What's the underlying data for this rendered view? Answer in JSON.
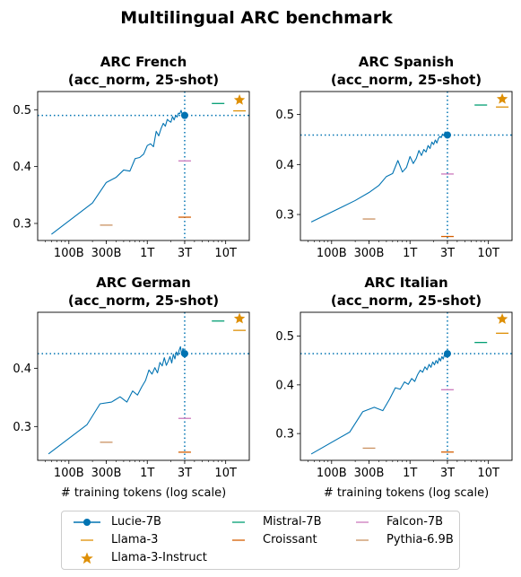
{
  "figure": {
    "title": "Multilingual ARC benchmark"
  },
  "chart_data": [
    {
      "type": "line",
      "title": "ARC French\n(acc_norm, 25-shot)",
      "title_lines": [
        "ARC French",
        "(acc_norm, 25-shot)"
      ],
      "xlabel": "",
      "ylabel": "",
      "xscale": "log",
      "xlim": [
        40,
        20000
      ],
      "ylim": [
        0.27,
        0.532
      ],
      "xticks": [
        {
          "v": 100,
          "label": "100B"
        },
        {
          "v": 300,
          "label": "300B"
        },
        {
          "v": 1000,
          "label": "1T"
        },
        {
          "v": 3000,
          "label": "3T"
        },
        {
          "v": 10000,
          "label": "10T"
        }
      ],
      "yticks": [
        0.3,
        0.4,
        0.5
      ],
      "grid": false,
      "reference": {
        "x": 3000,
        "y": 0.49
      },
      "series": [
        {
          "name": "Lucie-7B",
          "kind": "line",
          "color": "#0173b2",
          "x": [
            60,
            200,
            300,
            400,
            500,
            600,
            700,
            800,
            900,
            1000,
            1100,
            1200,
            1300,
            1400,
            1500,
            1600,
            1700,
            1800,
            1900,
            2000,
            2100,
            2200,
            2300,
            2400,
            2500,
            2600,
            2700,
            2800,
            2900,
            3000
          ],
          "y": [
            0.281,
            0.336,
            0.372,
            0.381,
            0.394,
            0.392,
            0.414,
            0.416,
            0.422,
            0.437,
            0.44,
            0.435,
            0.462,
            0.454,
            0.467,
            0.476,
            0.471,
            0.483,
            0.48,
            0.478,
            0.488,
            0.482,
            0.49,
            0.487,
            0.494,
            0.493,
            0.499,
            0.491,
            0.493,
            0.49
          ],
          "final_marker": {
            "x": 3000,
            "y": 0.49
          }
        },
        {
          "name": "Llama-3",
          "kind": "hline",
          "color": "#de8f05",
          "x": 15000,
          "y": 0.498
        },
        {
          "name": "Llama-3-Instruct",
          "kind": "star",
          "color": "#de8f05",
          "x": 15000,
          "y": 0.517
        },
        {
          "name": "Mistral-7B",
          "kind": "hline",
          "color": "#029e73",
          "x": 8000,
          "y": 0.511
        },
        {
          "name": "Croissant",
          "kind": "hline",
          "color": "#d55e00",
          "x": 3000,
          "y": 0.311
        },
        {
          "name": "Falcon-7B",
          "kind": "hline",
          "color": "#cc78bc",
          "x": 3000,
          "y": 0.41
        },
        {
          "name": "Pythia-6.9B",
          "kind": "hline",
          "color": "#ca9161",
          "x": 300,
          "y": 0.297
        }
      ]
    },
    {
      "type": "line",
      "title": "ARC Spanish\n(acc_norm, 25-shot)",
      "title_lines": [
        "ARC Spanish",
        "(acc_norm, 25-shot)"
      ],
      "xlabel": "",
      "ylabel": "",
      "xscale": "log",
      "xlim": [
        40,
        20000
      ],
      "ylim": [
        0.248,
        0.546
      ],
      "xticks": [
        {
          "v": 100,
          "label": "100B"
        },
        {
          "v": 300,
          "label": "300B"
        },
        {
          "v": 1000,
          "label": "1T"
        },
        {
          "v": 3000,
          "label": "3T"
        },
        {
          "v": 10000,
          "label": "10T"
        }
      ],
      "yticks": [
        0.3,
        0.4,
        0.5
      ],
      "grid": false,
      "reference": {
        "x": 3000,
        "y": 0.459
      },
      "series": [
        {
          "name": "Lucie-7B",
          "kind": "line",
          "color": "#0173b2",
          "x": [
            55,
            200,
            300,
            400,
            500,
            600,
            700,
            800,
            900,
            1000,
            1100,
            1200,
            1300,
            1400,
            1500,
            1600,
            1700,
            1800,
            1900,
            2000,
            2100,
            2200,
            2300,
            2400,
            2500,
            2600,
            2700,
            2800,
            2900,
            3000
          ],
          "y": [
            0.285,
            0.328,
            0.344,
            0.358,
            0.376,
            0.382,
            0.408,
            0.385,
            0.394,
            0.416,
            0.402,
            0.412,
            0.428,
            0.418,
            0.43,
            0.425,
            0.438,
            0.432,
            0.445,
            0.44,
            0.449,
            0.443,
            0.452,
            0.456,
            0.454,
            0.461,
            0.458,
            0.465,
            0.462,
            0.459
          ],
          "final_marker": {
            "x": 3000,
            "y": 0.459
          }
        },
        {
          "name": "Llama-3",
          "kind": "hline",
          "color": "#de8f05",
          "x": 15000,
          "y": 0.515
        },
        {
          "name": "Llama-3-Instruct",
          "kind": "star",
          "color": "#de8f05",
          "x": 15000,
          "y": 0.531
        },
        {
          "name": "Mistral-7B",
          "kind": "hline",
          "color": "#029e73",
          "x": 8000,
          "y": 0.519
        },
        {
          "name": "Croissant",
          "kind": "hline",
          "color": "#d55e00",
          "x": 3000,
          "y": 0.256
        },
        {
          "name": "Falcon-7B",
          "kind": "hline",
          "color": "#cc78bc",
          "x": 3000,
          "y": 0.381
        },
        {
          "name": "Pythia-6.9B",
          "kind": "hline",
          "color": "#ca9161",
          "x": 300,
          "y": 0.291
        }
      ]
    },
    {
      "type": "line",
      "title": "ARC German\n(acc_norm, 25-shot)",
      "title_lines": [
        "ARC German",
        "(acc_norm, 25-shot)"
      ],
      "xlabel": "# training tokens (log scale)",
      "ylabel": "",
      "xscale": "log",
      "xlim": [
        40,
        20000
      ],
      "ylim": [
        0.242,
        0.496
      ],
      "xticks": [
        {
          "v": 100,
          "label": "100B"
        },
        {
          "v": 300,
          "label": "300B"
        },
        {
          "v": 1000,
          "label": "1T"
        },
        {
          "v": 3000,
          "label": "3T"
        },
        {
          "v": 10000,
          "label": "10T"
        }
      ],
      "yticks": [
        0.3,
        0.4
      ],
      "grid": false,
      "reference": {
        "x": 3000,
        "y": 0.425
      },
      "series": [
        {
          "name": "Lucie-7B",
          "kind": "line",
          "color": "#0173b2",
          "x": [
            55,
            170,
            250,
            350,
            450,
            550,
            650,
            750,
            850,
            950,
            1050,
            1150,
            1250,
            1350,
            1450,
            1550,
            1650,
            1750,
            1850,
            1950,
            2050,
            2150,
            2250,
            2350,
            2450,
            2550,
            2650,
            2750,
            2850,
            3000
          ],
          "y": [
            0.253,
            0.303,
            0.339,
            0.342,
            0.351,
            0.342,
            0.361,
            0.354,
            0.368,
            0.379,
            0.397,
            0.39,
            0.401,
            0.392,
            0.41,
            0.404,
            0.418,
            0.405,
            0.412,
            0.42,
            0.409,
            0.424,
            0.416,
            0.428,
            0.422,
            0.431,
            0.437,
            0.423,
            0.434,
            0.425
          ],
          "final_marker": {
            "x": 3000,
            "y": 0.425
          }
        },
        {
          "name": "Llama-3",
          "kind": "hline",
          "color": "#de8f05",
          "x": 15000,
          "y": 0.465
        },
        {
          "name": "Llama-3-Instruct",
          "kind": "star",
          "color": "#de8f05",
          "x": 15000,
          "y": 0.485
        },
        {
          "name": "Mistral-7B",
          "kind": "hline",
          "color": "#029e73",
          "x": 8000,
          "y": 0.481
        },
        {
          "name": "Croissant",
          "kind": "hline",
          "color": "#d55e00",
          "x": 3000,
          "y": 0.256
        },
        {
          "name": "Falcon-7B",
          "kind": "hline",
          "color": "#cc78bc",
          "x": 3000,
          "y": 0.314
        },
        {
          "name": "Pythia-6.9B",
          "kind": "hline",
          "color": "#ca9161",
          "x": 300,
          "y": 0.273
        }
      ]
    },
    {
      "type": "line",
      "title": "ARC Italian\n(acc_norm, 25-shot)",
      "title_lines": [
        "ARC Italian",
        "(acc_norm, 25-shot)"
      ],
      "xlabel": "# training tokens (log scale)",
      "ylabel": "",
      "xscale": "log",
      "xlim": [
        40,
        20000
      ],
      "ylim": [
        0.245,
        0.549
      ],
      "xticks": [
        {
          "v": 100,
          "label": "100B"
        },
        {
          "v": 300,
          "label": "300B"
        },
        {
          "v": 1000,
          "label": "1T"
        },
        {
          "v": 3000,
          "label": "3T"
        },
        {
          "v": 10000,
          "label": "10T"
        }
      ],
      "yticks": [
        0.3,
        0.4,
        0.5
      ],
      "grid": false,
      "reference": {
        "x": 3000,
        "y": 0.464
      },
      "series": [
        {
          "name": "Lucie-7B",
          "kind": "line",
          "color": "#0173b2",
          "x": [
            55,
            170,
            250,
            350,
            450,
            550,
            650,
            750,
            850,
            950,
            1050,
            1150,
            1250,
            1350,
            1450,
            1550,
            1650,
            1750,
            1850,
            1950,
            2050,
            2150,
            2250,
            2350,
            2450,
            2550,
            2650,
            2750,
            2850,
            3000
          ],
          "y": [
            0.258,
            0.303,
            0.345,
            0.354,
            0.347,
            0.371,
            0.394,
            0.391,
            0.406,
            0.401,
            0.413,
            0.407,
            0.421,
            0.43,
            0.426,
            0.437,
            0.431,
            0.442,
            0.436,
            0.447,
            0.441,
            0.45,
            0.444,
            0.455,
            0.449,
            0.458,
            0.453,
            0.462,
            0.457,
            0.464
          ],
          "final_marker": {
            "x": 3000,
            "y": 0.464
          }
        },
        {
          "name": "Llama-3",
          "kind": "hline",
          "color": "#de8f05",
          "x": 15000,
          "y": 0.506
        },
        {
          "name": "Llama-3-Instruct",
          "kind": "star",
          "color": "#de8f05",
          "x": 15000,
          "y": 0.535
        },
        {
          "name": "Mistral-7B",
          "kind": "hline",
          "color": "#029e73",
          "x": 8000,
          "y": 0.487
        },
        {
          "name": "Croissant",
          "kind": "hline",
          "color": "#d55e00",
          "x": 3000,
          "y": 0.262
        },
        {
          "name": "Falcon-7B",
          "kind": "hline",
          "color": "#cc78bc",
          "x": 3000,
          "y": 0.39
        },
        {
          "name": "Pythia-6.9B",
          "kind": "hline",
          "color": "#ca9161",
          "x": 300,
          "y": 0.27
        }
      ]
    }
  ],
  "legend": {
    "items": [
      {
        "label": "Lucie-7B",
        "kind": "line-marker",
        "color": "#0173b2"
      },
      {
        "label": "Llama-3",
        "kind": "hline",
        "color": "#de8f05"
      },
      {
        "label": "Llama-3-Instruct",
        "kind": "star",
        "color": "#de8f05"
      },
      {
        "label": "Mistral-7B",
        "kind": "hline",
        "color": "#029e73"
      },
      {
        "label": "Croissant",
        "kind": "hline",
        "color": "#d55e00"
      },
      {
        "label": "Falcon-7B",
        "kind": "hline",
        "color": "#cc78bc"
      },
      {
        "label": "Pythia-6.9B",
        "kind": "hline",
        "color": "#ca9161"
      }
    ]
  }
}
